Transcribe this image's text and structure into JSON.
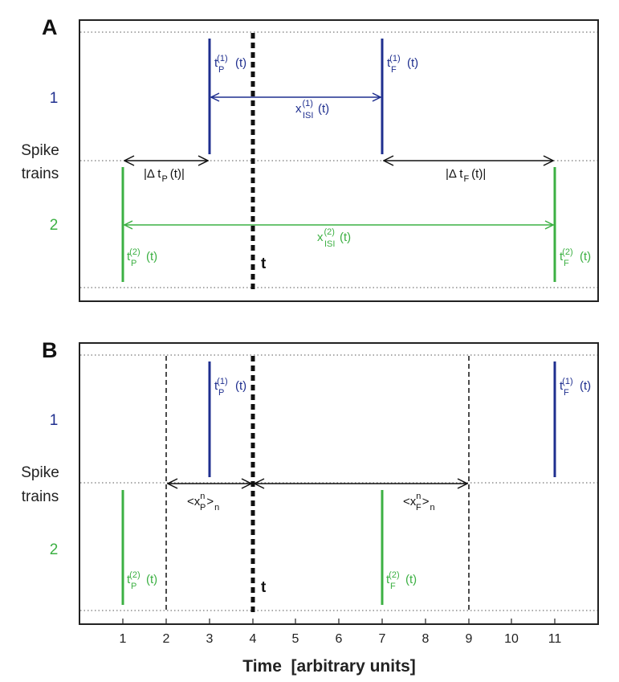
{
  "colors": {
    "train1": "#1f2f8f",
    "train2": "#3cb043",
    "black": "#111111",
    "frame": "#222222"
  },
  "panels": {
    "a": {
      "letter": "A",
      "y_labels": {
        "train1": "1",
        "spike": "Spike",
        "trains": "trains",
        "train2": "2"
      },
      "t_label": "t",
      "labels": {
        "tp1_main": "t",
        "tp1_sub": "P",
        "tp1_sup": "(1)",
        "tp1_arg": "(t)",
        "tf1_main": "t",
        "tf1_sub": "F",
        "tf1_sup": "(1)",
        "tf1_arg": "(t)",
        "xisi1_main": "x",
        "xisi1_sub": "ISI",
        "xisi1_sup": "(1)",
        "xisi1_arg": "(t)",
        "dtp_pre": "|Δ t",
        "dtp_sub": "P",
        "dtp_post": "(t)|",
        "dtf_pre": "|Δ t",
        "dtf_sub": "F",
        "dtf_post": "(t)|",
        "xisi2_main": "x",
        "xisi2_sub": "ISI",
        "xisi2_sup": "(2)",
        "xisi2_arg": "(t)",
        "tp2_main": "t",
        "tp2_sub": "P",
        "tp2_sup": "(2)",
        "tp2_arg": "(t)",
        "tf2_main": "t",
        "tf2_sub": "F",
        "tf2_sup": "(2)",
        "tf2_arg": "(t)"
      }
    },
    "b": {
      "letter": "B",
      "y_labels": {
        "train1": "1",
        "spike": "Spike",
        "trains": "trains",
        "train2": "2"
      },
      "t_label": "t",
      "labels": {
        "tp1_main": "t",
        "tp1_sub": "P",
        "tp1_sup": "(1)",
        "tp1_arg": "(t)",
        "tf1_main": "t",
        "tf1_sub": "F",
        "tf1_sup": "(1)",
        "tf1_arg": "(t)",
        "xp_pre": "<x",
        "xp_sub": "P",
        "xp_sup": "n",
        "xp_post": ">",
        "xp_n": "n",
        "xf_pre": "<x",
        "xf_sub": "F",
        "xf_sup": "n",
        "xf_post": ">",
        "xf_n": "n",
        "tp2_main": "t",
        "tp2_sub": "P",
        "tp2_sup": "(2)",
        "tp2_arg": "(t)",
        "tf2_main": "t",
        "tf2_sub": "F",
        "tf2_sup": "(2)",
        "tf2_arg": "(t)"
      }
    }
  },
  "x_axis": {
    "ticks": [
      "1",
      "2",
      "3",
      "4",
      "5",
      "6",
      "7",
      "8",
      "9",
      "10",
      "11"
    ],
    "title": "Time  [arbitrary units]"
  }
}
